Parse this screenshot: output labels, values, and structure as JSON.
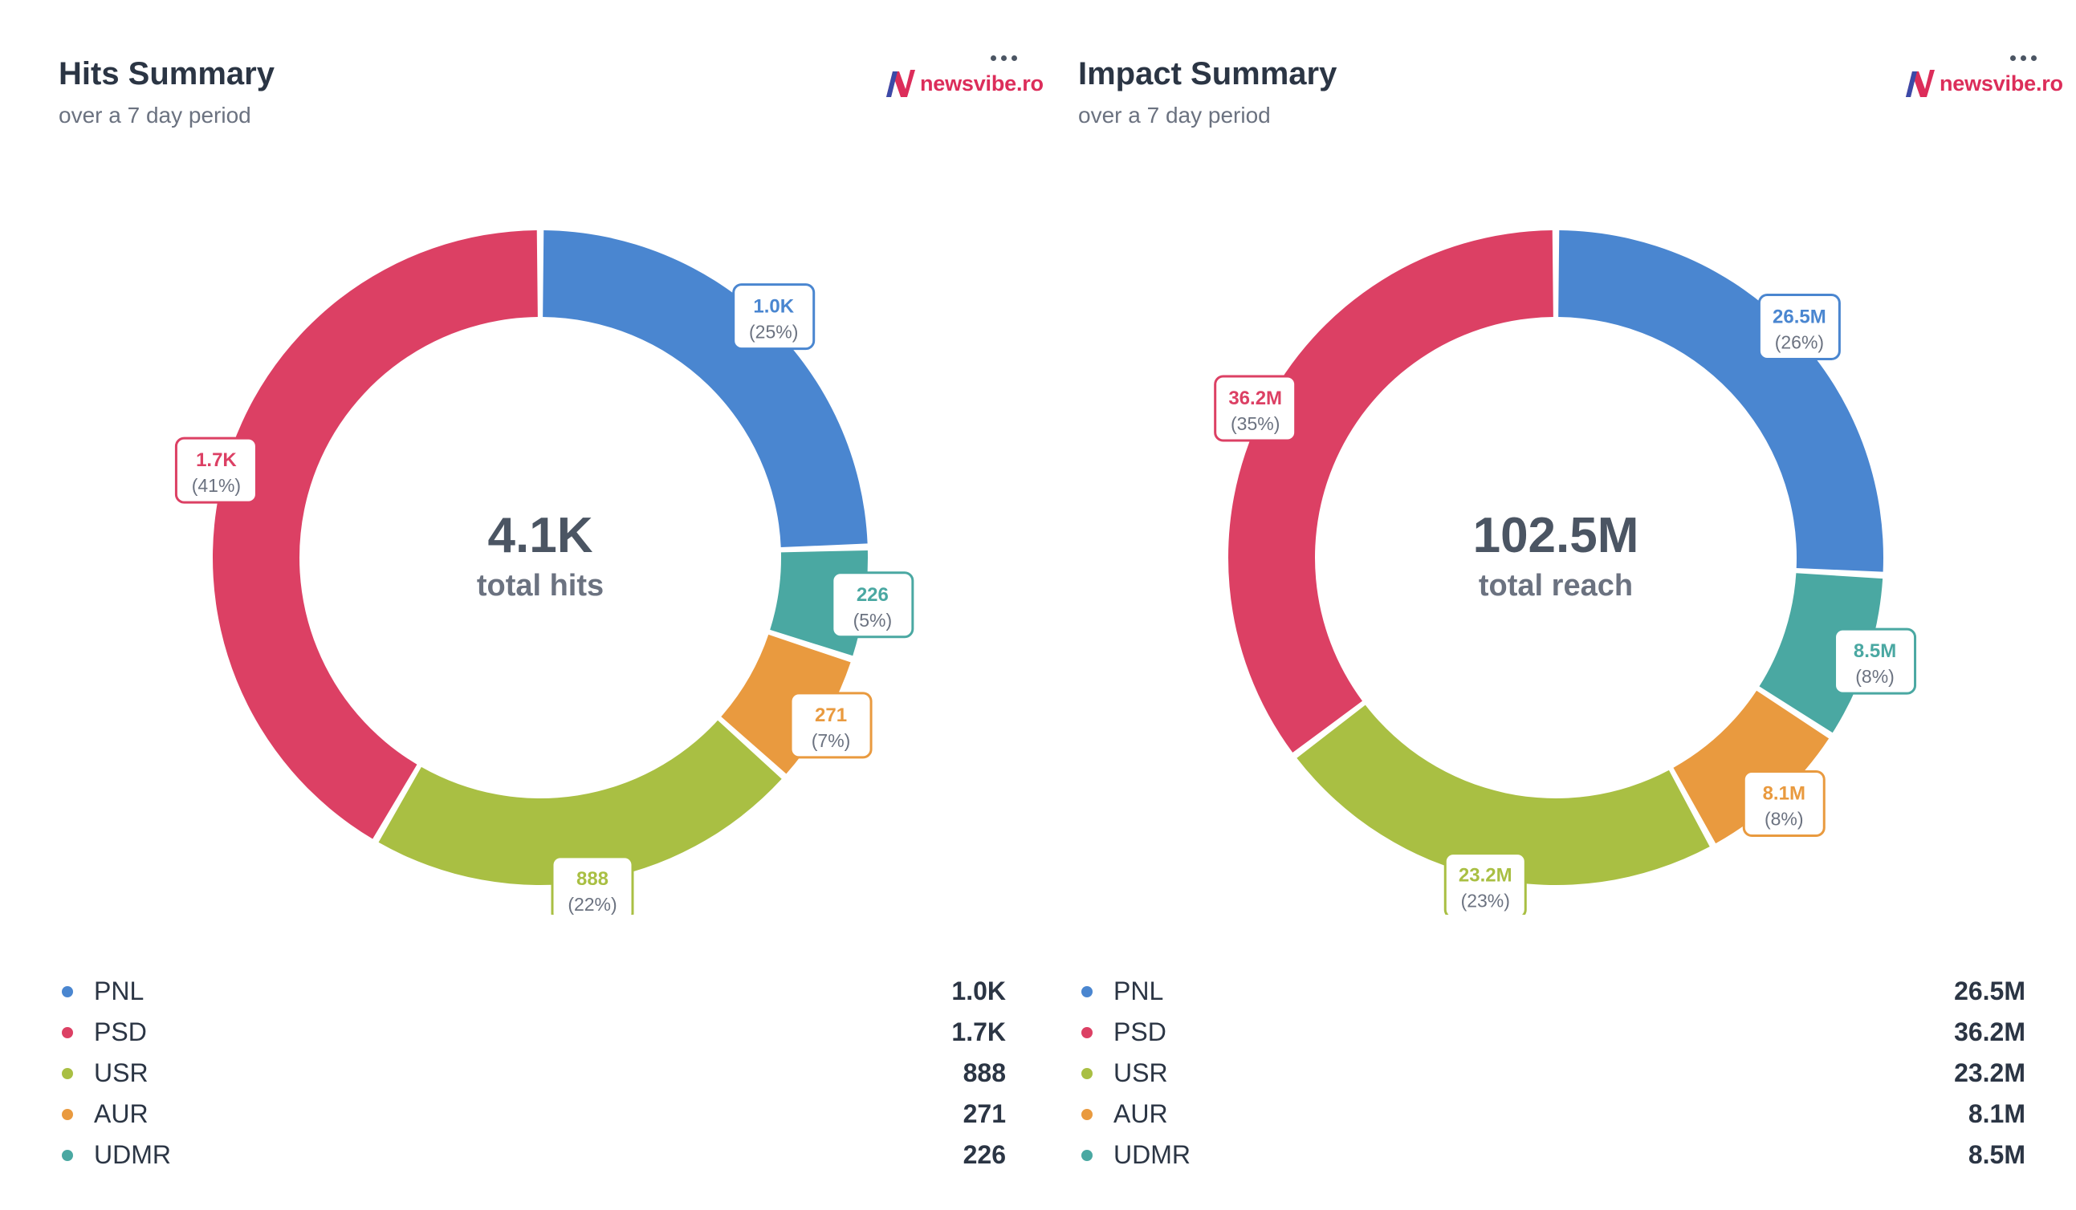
{
  "colors": {
    "PNL": "#4a86d0",
    "PSD": "#dc4064",
    "USR": "#a9bf43",
    "AUR": "#e99a3f",
    "UDMR": "#4aa8a2"
  },
  "brand": {
    "logo_text": "newsvibe.ro",
    "logo_color": "#dc2d5a"
  },
  "panels": [
    {
      "title": "Hits Summary",
      "subtitle": "over a 7 day period",
      "center_value": "4.1K",
      "center_label": "total hits",
      "legend": [
        {
          "name": "PNL",
          "value": "1.0K"
        },
        {
          "name": "PSD",
          "value": "1.7K"
        },
        {
          "name": "USR",
          "value": "888"
        },
        {
          "name": "AUR",
          "value": "271"
        },
        {
          "name": "UDMR",
          "value": "226"
        }
      ]
    },
    {
      "title": "Impact Summary",
      "subtitle": "over a 7 day period",
      "center_value": "102.5M",
      "center_label": "total reach",
      "legend": [
        {
          "name": "PNL",
          "value": "26.5M"
        },
        {
          "name": "PSD",
          "value": "36.2M"
        },
        {
          "name": "USR",
          "value": "23.2M"
        },
        {
          "name": "AUR",
          "value": "8.1M"
        },
        {
          "name": "UDMR",
          "value": "8.5M"
        }
      ]
    }
  ],
  "chart_data": [
    {
      "type": "pie",
      "title": "Hits Summary",
      "subtitle": "over a 7 day period",
      "slices": [
        {
          "name": "PNL",
          "value": 1000,
          "label": "1.0K",
          "pct": "(25%)"
        },
        {
          "name": "UDMR",
          "value": 226,
          "label": "226",
          "pct": "(5%)"
        },
        {
          "name": "AUR",
          "value": 271,
          "label": "271",
          "pct": "(7%)"
        },
        {
          "name": "USR",
          "value": 888,
          "label": "888",
          "pct": "(22%)"
        },
        {
          "name": "PSD",
          "value": 1700,
          "label": "1.7K",
          "pct": "(41%)"
        }
      ],
      "center": {
        "value": "4.1K",
        "label": "total hits"
      }
    },
    {
      "type": "pie",
      "title": "Impact Summary",
      "subtitle": "over a 7 day period",
      "slices": [
        {
          "name": "PNL",
          "value": 26.5,
          "label": "26.5M",
          "pct": "(26%)"
        },
        {
          "name": "UDMR",
          "value": 8.5,
          "label": "8.5M",
          "pct": "(8%)"
        },
        {
          "name": "AUR",
          "value": 8.1,
          "label": "8.1M",
          "pct": "(8%)"
        },
        {
          "name": "USR",
          "value": 23.2,
          "label": "23.2M",
          "pct": "(23%)"
        },
        {
          "name": "PSD",
          "value": 36.2,
          "label": "36.2M",
          "pct": "(35%)"
        }
      ],
      "center": {
        "value": "102.5M",
        "label": "total reach"
      }
    }
  ]
}
